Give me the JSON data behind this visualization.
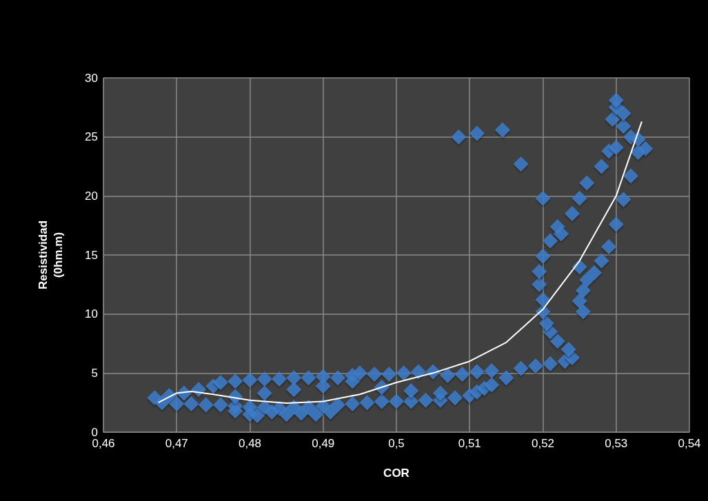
{
  "chart_data": {
    "type": "scatter",
    "xlabel": "COR",
    "ylabel": "Resistividad\n(0hm.m)",
    "marker": "diamond",
    "grid": true,
    "xlim": [
      0.46,
      0.54
    ],
    "ylim": [
      0,
      30
    ],
    "xticks": [
      {
        "value": 0.46,
        "label": "0,46"
      },
      {
        "value": 0.47,
        "label": "0,47"
      },
      {
        "value": 0.48,
        "label": "0,48"
      },
      {
        "value": 0.49,
        "label": "0,49"
      },
      {
        "value": 0.5,
        "label": "0,5"
      },
      {
        "value": 0.51,
        "label": "0,51"
      },
      {
        "value": 0.52,
        "label": "0,52"
      },
      {
        "value": 0.53,
        "label": "0,53"
      },
      {
        "value": 0.54,
        "label": "0,54"
      }
    ],
    "yticks": [
      0,
      5,
      10,
      15,
      20,
      25,
      30
    ],
    "series": [
      {
        "color": "#3d7fd0",
        "x": [
          0.467,
          0.469,
          0.471,
          0.473,
          0.475,
          0.476,
          0.478,
          0.48,
          0.482,
          0.484,
          0.486,
          0.488,
          0.49,
          0.492,
          0.494,
          0.495,
          0.497,
          0.499,
          0.501,
          0.503,
          0.505,
          0.507,
          0.509,
          0.511,
          0.513,
          0.515,
          0.517,
          0.519,
          0.521,
          0.523,
          0.524,
          0.5235,
          0.522,
          0.521,
          0.5205,
          0.52,
          0.52,
          0.5195,
          0.5195,
          0.52,
          0.521,
          0.522,
          0.5225,
          0.524,
          0.525,
          0.526,
          0.528,
          0.529,
          0.53,
          0.531,
          0.5295,
          0.53,
          0.53,
          0.531,
          0.532,
          0.533,
          0.534,
          0.533,
          0.532,
          0.531,
          0.53,
          0.529,
          0.528,
          0.527,
          0.526,
          0.5255,
          0.525,
          0.5255,
          0.525,
          0.52,
          0.5085,
          0.511,
          0.5145,
          0.517,
          0.468,
          0.47,
          0.472,
          0.474,
          0.476,
          0.478,
          0.48,
          0.482,
          0.484,
          0.486,
          0.488,
          0.49,
          0.492,
          0.494,
          0.496,
          0.498,
          0.5,
          0.502,
          0.504,
          0.506,
          0.508,
          0.51,
          0.511,
          0.512,
          0.513,
          0.478,
          0.48,
          0.481,
          0.483,
          0.485,
          0.487,
          0.489,
          0.491,
          0.478,
          0.482,
          0.486,
          0.49,
          0.494,
          0.498,
          0.502,
          0.506
        ],
        "values": [
          2.9,
          3.1,
          3.3,
          3.6,
          3.9,
          4.2,
          4.3,
          4.4,
          4.5,
          4.5,
          4.6,
          4.6,
          4.7,
          4.6,
          4.8,
          5.0,
          4.9,
          4.9,
          5.0,
          5.1,
          5.1,
          4.8,
          4.9,
          5.1,
          5.2,
          4.6,
          5.4,
          5.6,
          5.8,
          6.0,
          6.3,
          7.0,
          7.7,
          8.5,
          9.2,
          10.2,
          11.2,
          12.5,
          13.6,
          14.9,
          16.2,
          17.4,
          16.8,
          18.5,
          19.8,
          21.1,
          22.5,
          23.8,
          24.1,
          25.9,
          26.5,
          27.5,
          28.1,
          27.0,
          25.0,
          24.8,
          24.0,
          23.7,
          21.7,
          19.7,
          17.6,
          15.7,
          14.5,
          13.5,
          12.9,
          12.0,
          11.1,
          10.2,
          14.0,
          19.8,
          25.0,
          25.3,
          25.6,
          22.7,
          2.5,
          2.4,
          2.4,
          2.3,
          2.3,
          2.2,
          2.1,
          2.1,
          2.0,
          2.1,
          2.1,
          2.2,
          2.3,
          2.4,
          2.5,
          2.6,
          2.6,
          2.6,
          2.7,
          2.7,
          2.9,
          3.1,
          3.4,
          3.7,
          4.0,
          1.8,
          1.5,
          1.4,
          1.7,
          1.5,
          1.6,
          1.5,
          1.7,
          3.0,
          3.3,
          3.6,
          3.9,
          4.3,
          3.8,
          3.5,
          3.3
        ]
      },
      {
        "type": "line",
        "color": "#ffffff",
        "marker": "none",
        "x": [
          0.4675,
          0.47,
          0.472,
          0.475,
          0.48,
          0.485,
          0.49,
          0.495,
          0.5,
          0.505,
          0.51,
          0.515,
          0.52,
          0.525,
          0.53,
          0.5335
        ],
        "values": [
          2.5,
          3.3,
          3.45,
          3.2,
          2.7,
          2.45,
          2.6,
          3.2,
          4.2,
          5.0,
          6.0,
          7.6,
          10.4,
          14.5,
          20.0,
          26.3
        ]
      }
    ]
  }
}
